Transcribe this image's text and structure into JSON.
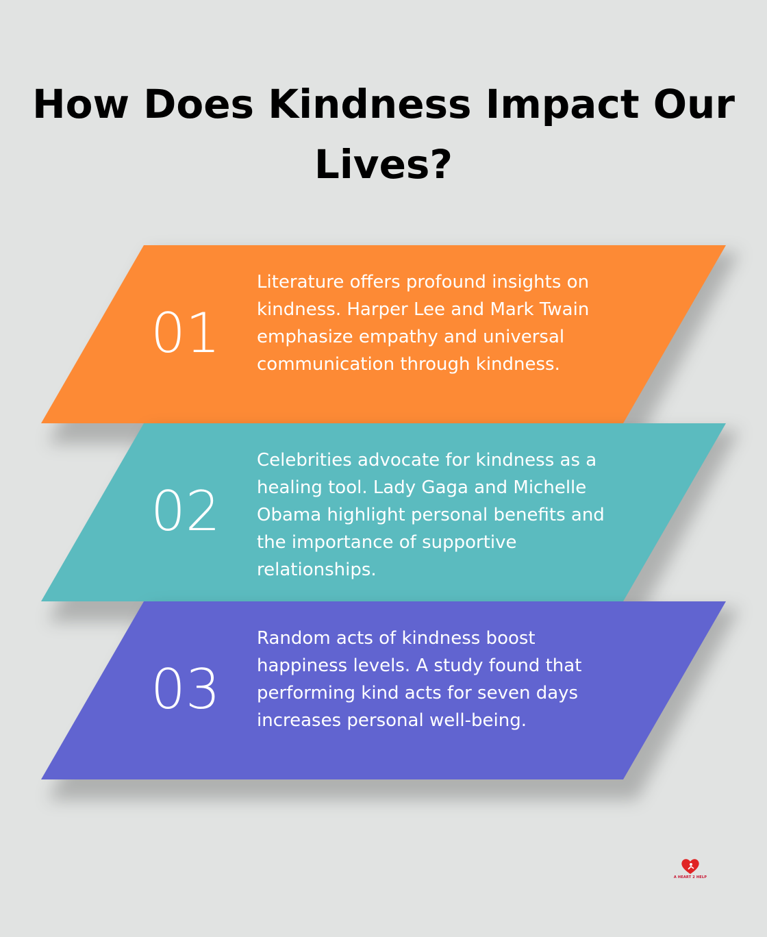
{
  "title": "How Does Kindness Impact Our Lives?",
  "items": [
    {
      "number": "01",
      "text": "Literature offers profound insights on kindness. Harper Lee and Mark Twain emphasize empathy and universal communication through kindness.",
      "color": "#fd8a35"
    },
    {
      "number": "02",
      "text": "Celebrities advocate for kindness as a healing tool. Lady Gaga and Michelle Obama highlight personal benefits and the importance of supportive relationships.",
      "color": "#5bbbbf"
    },
    {
      "number": "03",
      "text": "Random acts of kindness boost happiness levels. A study found that performing kind acts for seven days increases personal well-being.",
      "color": "#6164d0"
    }
  ],
  "logo": {
    "text": "A HEART 2 HELP",
    "icon": "heart-icon",
    "color": "#e02424"
  }
}
